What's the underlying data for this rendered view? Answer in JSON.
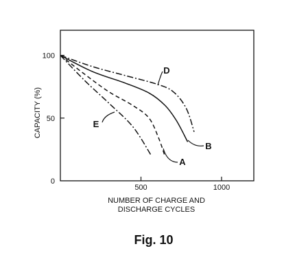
{
  "chart_data": {
    "type": "line",
    "title": "",
    "xlabel_line1": "NUMBER OF CHARGE AND",
    "xlabel_line2": "DISCHARGE CYCLES",
    "ylabel": "CAPACITY (%)",
    "xlim": [
      0,
      1200
    ],
    "ylim": [
      0,
      120
    ],
    "xticks": [
      {
        "value": 500,
        "label": "500"
      },
      {
        "value": 1000,
        "label": "1000"
      }
    ],
    "yticks": [
      {
        "value": 0,
        "label": "0"
      },
      {
        "value": 50,
        "label": "50"
      },
      {
        "value": 100,
        "label": "100"
      }
    ],
    "grid": false,
    "series": [
      {
        "name": "A",
        "style": "dashed",
        "x": [
          0,
          150,
          300,
          450,
          550,
          610,
          650
        ],
        "y": [
          100,
          85,
          71,
          60,
          50,
          34,
          19
        ]
      },
      {
        "name": "B",
        "style": "solid",
        "x": [
          0,
          200,
          400,
          550,
          650,
          720,
          790
        ],
        "y": [
          100,
          87,
          78,
          70,
          60,
          48,
          31
        ]
      },
      {
        "name": "D",
        "style": "dashdot",
        "x": [
          0,
          200,
          400,
          600,
          700,
          780,
          830
        ],
        "y": [
          100,
          91,
          84,
          77,
          71,
          58,
          39
        ]
      },
      {
        "name": "E",
        "style": "dashdot",
        "x": [
          0,
          150,
          300,
          450,
          560
        ],
        "y": [
          100,
          80,
          62,
          43,
          21
        ]
      }
    ],
    "annotations": [
      {
        "label": "A",
        "series": "A"
      },
      {
        "label": "B",
        "series": "B"
      },
      {
        "label": "D",
        "series": "D"
      },
      {
        "label": "E",
        "series": "E"
      }
    ]
  },
  "caption": "Fig. 10"
}
